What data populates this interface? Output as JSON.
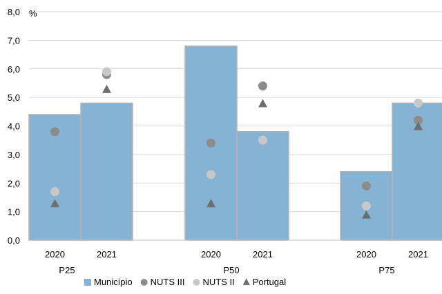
{
  "chart_data": {
    "type": "bar",
    "ylabel": "%",
    "ylim": [
      0,
      8
    ],
    "yticks": [
      "0,0",
      "1,0",
      "2,0",
      "3,0",
      "4,0",
      "5,0",
      "6,0",
      "7,0",
      "8,0"
    ],
    "grid": true,
    "groups": [
      {
        "label": "P25",
        "categories": [
          "2020",
          "2021"
        ]
      },
      {
        "label": "P50",
        "categories": [
          "2020",
          "2021"
        ]
      },
      {
        "label": "P75",
        "categories": [
          "2020",
          "2021"
        ]
      }
    ],
    "series": [
      {
        "name": "Município",
        "kind": "bar",
        "color": "#86b3d3",
        "values": [
          4.4,
          4.8,
          6.8,
          3.8,
          2.4,
          4.8
        ]
      },
      {
        "name": "NUTS III",
        "kind": "circle",
        "color": "#8c8c8c",
        "values": [
          3.8,
          5.8,
          3.4,
          5.4,
          1.9,
          4.2
        ]
      },
      {
        "name": "NUTS II",
        "kind": "circle",
        "color": "#c8c8c8",
        "values": [
          1.7,
          5.9,
          2.3,
          3.5,
          1.2,
          4.8
        ]
      },
      {
        "name": "Portugal",
        "kind": "triangle",
        "color": "#6e6e6e",
        "values": [
          1.3,
          5.3,
          1.3,
          4.8,
          0.9,
          4.0
        ]
      }
    ],
    "legend_position": "bottom"
  }
}
